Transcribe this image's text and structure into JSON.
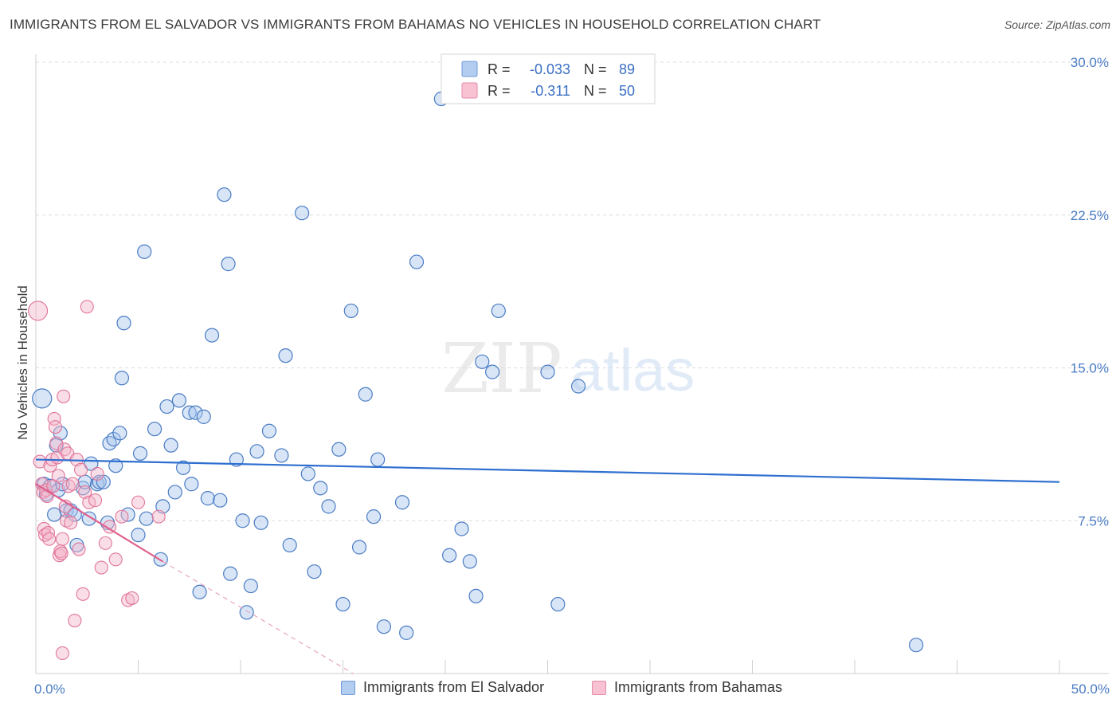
{
  "title": "IMMIGRANTS FROM EL SALVADOR VS IMMIGRANTS FROM BAHAMAS NO VEHICLES IN HOUSEHOLD CORRELATION CHART",
  "source": "Source: ZipAtlas.com",
  "watermark": {
    "zip": "ZIP",
    "atlas": "atlas"
  },
  "colors": {
    "blue": "#4a7cc4",
    "blue_fill": "#a9c6ee",
    "blue_line": "#2f6fd0",
    "pink": "#e0759a",
    "pink_fill": "#f5b5c9",
    "pink_line": "#e0608d"
  },
  "legend": {
    "r_label": "R =",
    "n_label": "N =",
    "rows": [
      {
        "r": "-0.033",
        "n": "89"
      },
      {
        "r": "-0.311",
        "n": "50"
      }
    ]
  },
  "bottom_legend": [
    "Immigrants from El Salvador",
    "Immigrants from Bahamas"
  ],
  "chart_data": {
    "type": "scatter",
    "title": "IMMIGRANTS FROM EL SALVADOR VS IMMIGRANTS FROM BAHAMAS NO VEHICLES IN HOUSEHOLD CORRELATION CHART",
    "xlabel": "",
    "ylabel": "No Vehicles in Household",
    "xlim": [
      0,
      50
    ],
    "ylim": [
      0,
      30
    ],
    "x_tick_labels": [
      "0.0%",
      "50.0%"
    ],
    "y_ticks": [
      7.5,
      15.0,
      22.5,
      30.0
    ],
    "y_tick_labels": [
      "7.5%",
      "15.0%",
      "22.5%",
      "30.0%"
    ],
    "grid": true,
    "series": [
      {
        "name": "Immigrants from El Salvador",
        "r": -0.033,
        "n": 89,
        "trend": {
          "x": [
            0,
            50
          ],
          "y": [
            10.5,
            9.4
          ]
        },
        "points": [
          [
            0.3,
            13.5
          ],
          [
            0.4,
            9.3
          ],
          [
            0.5,
            8.8
          ],
          [
            0.7,
            9.2
          ],
          [
            0.9,
            7.8
          ],
          [
            1.0,
            11.2
          ],
          [
            1.1,
            9.0
          ],
          [
            1.2,
            11.8
          ],
          [
            1.3,
            9.3
          ],
          [
            1.5,
            8.0
          ],
          [
            1.7,
            8.0
          ],
          [
            1.9,
            7.8
          ],
          [
            2.0,
            6.3
          ],
          [
            2.3,
            9.1
          ],
          [
            2.4,
            9.4
          ],
          [
            2.6,
            7.6
          ],
          [
            2.7,
            10.3
          ],
          [
            3.0,
            9.3
          ],
          [
            3.1,
            9.4
          ],
          [
            3.3,
            9.4
          ],
          [
            3.5,
            7.4
          ],
          [
            3.6,
            11.3
          ],
          [
            3.8,
            11.5
          ],
          [
            3.9,
            10.2
          ],
          [
            4.1,
            11.8
          ],
          [
            4.2,
            14.5
          ],
          [
            4.3,
            17.2
          ],
          [
            4.5,
            7.8
          ],
          [
            5.0,
            6.8
          ],
          [
            5.1,
            10.8
          ],
          [
            5.3,
            20.7
          ],
          [
            5.4,
            7.6
          ],
          [
            5.8,
            12.0
          ],
          [
            6.1,
            5.6
          ],
          [
            6.2,
            8.2
          ],
          [
            6.4,
            13.1
          ],
          [
            6.6,
            11.2
          ],
          [
            6.8,
            8.9
          ],
          [
            7.0,
            13.4
          ],
          [
            7.2,
            10.1
          ],
          [
            7.5,
            12.8
          ],
          [
            7.6,
            9.3
          ],
          [
            7.8,
            12.8
          ],
          [
            8.0,
            4.0
          ],
          [
            8.2,
            12.6
          ],
          [
            8.4,
            8.6
          ],
          [
            8.6,
            16.6
          ],
          [
            9.0,
            8.5
          ],
          [
            9.2,
            23.5
          ],
          [
            9.4,
            20.1
          ],
          [
            9.5,
            4.9
          ],
          [
            9.8,
            10.5
          ],
          [
            10.1,
            7.5
          ],
          [
            10.3,
            3.0
          ],
          [
            10.5,
            4.3
          ],
          [
            10.8,
            10.9
          ],
          [
            11.0,
            7.4
          ],
          [
            11.4,
            11.9
          ],
          [
            12.0,
            10.7
          ],
          [
            12.2,
            15.6
          ],
          [
            12.4,
            6.3
          ],
          [
            13.0,
            22.6
          ],
          [
            13.3,
            9.8
          ],
          [
            13.6,
            5.0
          ],
          [
            13.9,
            9.1
          ],
          [
            14.3,
            8.2
          ],
          [
            14.8,
            11.0
          ],
          [
            15.0,
            3.4
          ],
          [
            15.4,
            17.8
          ],
          [
            15.8,
            6.2
          ],
          [
            16.1,
            13.7
          ],
          [
            16.5,
            7.7
          ],
          [
            16.7,
            10.5
          ],
          [
            17.0,
            2.3
          ],
          [
            17.9,
            8.4
          ],
          [
            18.1,
            2.0
          ],
          [
            18.6,
            20.2
          ],
          [
            19.8,
            28.2
          ],
          [
            20.2,
            5.8
          ],
          [
            20.8,
            7.1
          ],
          [
            21.2,
            5.5
          ],
          [
            21.5,
            3.8
          ],
          [
            21.8,
            15.3
          ],
          [
            22.3,
            14.8
          ],
          [
            22.6,
            17.8
          ],
          [
            25.0,
            14.8
          ],
          [
            25.5,
            3.4
          ],
          [
            26.5,
            14.1
          ],
          [
            43.0,
            1.4
          ]
        ]
      },
      {
        "name": "Immigrants from Bahamas",
        "r": -0.311,
        "n": 50,
        "trend": {
          "x": [
            0,
            6.2
          ],
          "y": [
            9.3,
            5.5
          ]
        },
        "trend_dashed": {
          "x": [
            6.2,
            15.5
          ],
          "y": [
            5.5,
            0
          ]
        },
        "points": [
          [
            0.1,
            17.8
          ],
          [
            0.2,
            10.4
          ],
          [
            0.3,
            9.3
          ],
          [
            0.35,
            8.9
          ],
          [
            0.4,
            7.1
          ],
          [
            0.45,
            6.8
          ],
          [
            0.5,
            9.0
          ],
          [
            0.55,
            8.7
          ],
          [
            0.6,
            6.9
          ],
          [
            0.65,
            6.6
          ],
          [
            0.7,
            10.2
          ],
          [
            0.8,
            10.5
          ],
          [
            0.85,
            9.2
          ],
          [
            0.9,
            12.5
          ],
          [
            0.95,
            12.1
          ],
          [
            1.0,
            11.3
          ],
          [
            1.05,
            10.6
          ],
          [
            1.1,
            9.7
          ],
          [
            1.15,
            5.8
          ],
          [
            1.2,
            6.0
          ],
          [
            1.25,
            5.9
          ],
          [
            1.3,
            6.6
          ],
          [
            1.35,
            13.6
          ],
          [
            1.4,
            11.0
          ],
          [
            1.45,
            8.2
          ],
          [
            1.5,
            7.5
          ],
          [
            1.55,
            10.8
          ],
          [
            1.6,
            9.2
          ],
          [
            1.7,
            7.4
          ],
          [
            1.8,
            9.3
          ],
          [
            1.9,
            2.6
          ],
          [
            2.0,
            10.5
          ],
          [
            2.1,
            6.1
          ],
          [
            2.2,
            10.0
          ],
          [
            2.3,
            3.9
          ],
          [
            2.4,
            8.9
          ],
          [
            2.5,
            18.0
          ],
          [
            2.6,
            8.4
          ],
          [
            2.9,
            8.5
          ],
          [
            3.0,
            9.8
          ],
          [
            3.2,
            5.2
          ],
          [
            3.4,
            6.4
          ],
          [
            3.6,
            7.2
          ],
          [
            3.9,
            5.6
          ],
          [
            4.2,
            7.7
          ],
          [
            4.5,
            3.6
          ],
          [
            4.7,
            3.7
          ],
          [
            5.0,
            8.4
          ],
          [
            6.0,
            7.7
          ],
          [
            1.3,
            1.0
          ]
        ]
      }
    ]
  }
}
